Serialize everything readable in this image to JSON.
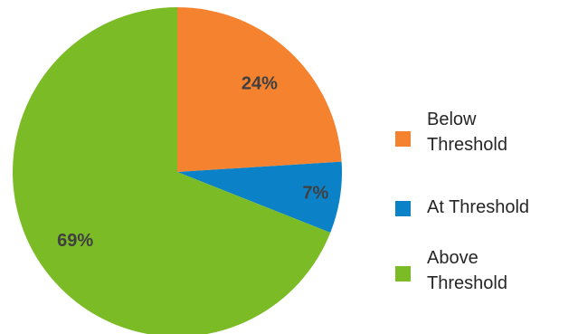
{
  "chart_data": {
    "type": "pie",
    "title": "",
    "start_angle_deg": 0,
    "direction": "clockwise",
    "legend_position": "right",
    "slices": [
      {
        "label": "Below Threshold",
        "value": 24,
        "display": "24%",
        "color": "#F5822F"
      },
      {
        "label": "At Threshold",
        "value": 7,
        "display": "7%",
        "color": "#0B82C8"
      },
      {
        "label": "Above Threshold",
        "value": 69,
        "display": "69%",
        "color": "#7BBB26"
      }
    ]
  },
  "legend": {
    "items": [
      {
        "line1": "Below",
        "line2": "Threshold",
        "color": "#F5822F"
      },
      {
        "line1": "At Threshold",
        "line2": "",
        "color": "#0B82C8"
      },
      {
        "line1": "Above",
        "line2": "Threshold",
        "color": "#7BBB26"
      }
    ]
  }
}
